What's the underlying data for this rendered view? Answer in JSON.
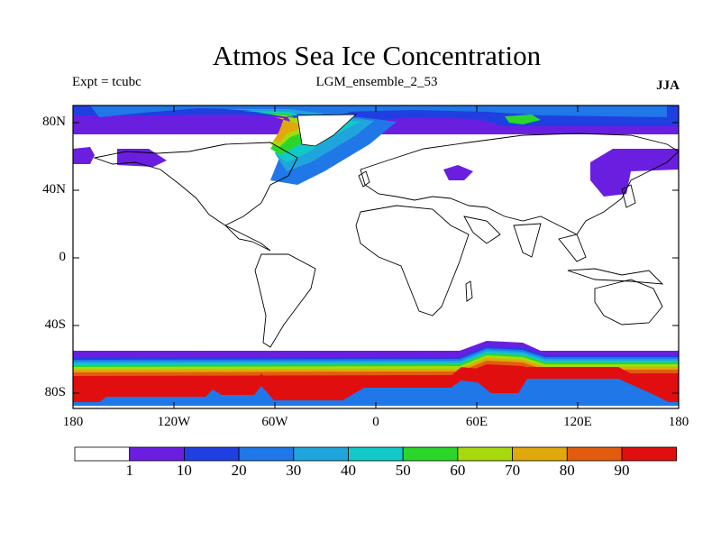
{
  "header": {
    "title": "Atmos Sea Ice Concentration",
    "expt": "Expt = tcubc",
    "subtitle": "LGM_ensemble_2_53",
    "season": "JJA"
  },
  "axes": {
    "y_ticks": [
      "80N",
      "40N",
      "0",
      "40S",
      "80S"
    ],
    "x_ticks": [
      "180",
      "120W",
      "60W",
      "0",
      "60E",
      "120E",
      "180"
    ]
  },
  "colorbar": {
    "labels": [
      "1",
      "10",
      "20",
      "30",
      "40",
      "50",
      "60",
      "70",
      "80",
      "90"
    ],
    "colors": [
      "#ffffff",
      "#6a1fe0",
      "#1f3fe0",
      "#1f77e8",
      "#1fa5dc",
      "#12c9c9",
      "#2bd62b",
      "#a8d90e",
      "#e0a80a",
      "#e35c0e",
      "#e00e0e"
    ]
  },
  "colors": {
    "ocean": "#ffffff",
    "coast": "#000000"
  }
}
